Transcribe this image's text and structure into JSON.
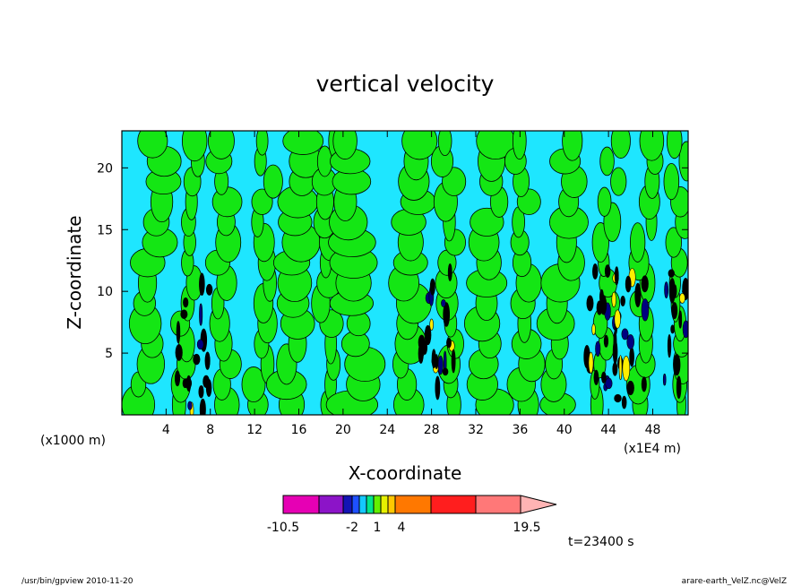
{
  "chart_data": {
    "type": "heatmap",
    "title": "vertical velocity",
    "xlabel": "X-coordinate",
    "ylabel": "Z-coordinate",
    "x_unit": "(x1E4 m)",
    "y_unit": "(x1000 m)",
    "xlim": [
      0,
      51.2
    ],
    "ylim": [
      0,
      23
    ],
    "x_ticks": [
      "4",
      "8",
      "12",
      "16",
      "20",
      "24",
      "28",
      "32",
      "36",
      "40",
      "44",
      "48"
    ],
    "y_ticks": [
      "5",
      "10",
      "15",
      "20"
    ],
    "x_tick_values": [
      4,
      8,
      12,
      16,
      20,
      24,
      28,
      32,
      36,
      40,
      44,
      48
    ],
    "y_tick_values": [
      5,
      10,
      15,
      20
    ],
    "time_label": "t=23400 s",
    "colorbar": {
      "labels": [
        "-10.5",
        "-2",
        "1",
        "4",
        "19.5"
      ],
      "label_values": [
        -10.5,
        -2,
        1,
        4,
        19.5
      ],
      "colors": [
        "#e600b4",
        "#8c14c8",
        "#1414b4",
        "#1e50ff",
        "#14c8ff",
        "#00e68c",
        "#64f000",
        "#e6f000",
        "#ffc800",
        "#ff7800",
        "#ff1e1e",
        "#ff7878",
        "#ffb4b4"
      ]
    },
    "dominant_colors": {
      "negative_small": "#1ee6ff",
      "positive_small": "#14e614",
      "strong_negative": "#000080",
      "strong_positive": "#ffee00"
    },
    "grid": false
  },
  "footer": {
    "left": "/usr/bin/gpview   2010-11-20",
    "right": "arare-earth_VelZ.nc@VelZ"
  }
}
